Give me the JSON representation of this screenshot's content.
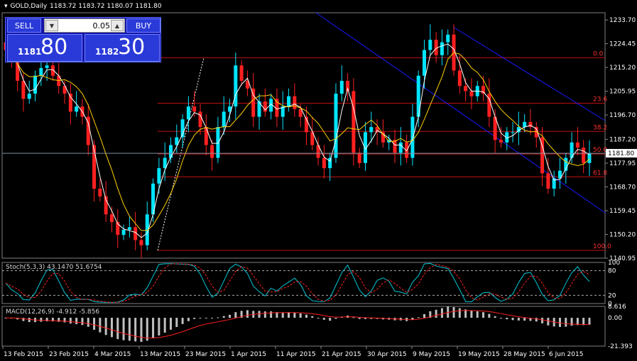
{
  "header": {
    "symbol": "GOLD,Daily",
    "ohlc": "1183.72 1183.72 1180.07 1181.80"
  },
  "trade_panel": {
    "sell_label": "SELL",
    "buy_label": "BUY",
    "lot_value": "0.05",
    "sell_price_small": "1181",
    "sell_price_big": "80",
    "buy_price_small": "1182",
    "buy_price_big": "30"
  },
  "price_axis": {
    "labels": [
      "1233.70",
      "1224.45",
      "1215.20",
      "1205.95",
      "1196.70",
      "1187.20",
      "1177.95",
      "1168.70",
      "1159.45",
      "1150.20",
      "1140.95"
    ],
    "current_price": "1181.80"
  },
  "fib_levels": [
    {
      "label": "0.0",
      "price": 1219.0
    },
    {
      "label": "23.6",
      "price": 1201.3
    },
    {
      "label": "38.2",
      "price": 1190.3
    },
    {
      "label": "50.0",
      "price": 1181.5
    },
    {
      "label": "61.8",
      "price": 1172.6
    },
    {
      "label": "100.0",
      "price": 1144.0
    }
  ],
  "stoch": {
    "label": "Stoch(5,3,3) 43.1470 51.6754",
    "levels": [
      "100",
      "80",
      "20",
      "0"
    ]
  },
  "macd": {
    "label": "MACD(12,26,9) -4.912 -5.856",
    "levels": [
      "8.616",
      "0.00",
      "-21.393"
    ]
  },
  "time_axis": [
    "13 Feb 2015",
    "23 Feb 2015",
    "4 Mar 2015",
    "13 Mar 2015",
    "23 Mar 2015",
    "1 Apr 2015",
    "11 Apr 2015",
    "21 Apr 2015",
    "30 Apr 2015",
    "9 May 2015",
    "19 May 2015",
    "28 May 2015",
    "6 Jun 2015"
  ],
  "colors": {
    "bull": "#00e5ff",
    "bear": "#ff2020",
    "fib": "#c01010",
    "channel": "#1a1aff",
    "ma_fast": "#ffffff",
    "ma_slow": "#ffd000",
    "stoch_main": "#00c8d8",
    "stoch_signal": "#ff2020",
    "macd_hist": "#c0c0c0",
    "macd_signal": "#ff2020"
  },
  "chart_data": {
    "type": "candlestick",
    "symbol": "GOLD",
    "timeframe": "Daily",
    "ylim": [
      1140.95,
      1236.5
    ],
    "x": [
      "13 Feb 2015",
      "23 Feb 2015",
      "4 Mar 2015",
      "13 Mar 2015",
      "23 Mar 2015",
      "1 Apr 2015",
      "11 Apr 2015",
      "21 Apr 2015",
      "30 Apr 2015",
      "9 May 2015",
      "19 May 2015",
      "28 May 2015",
      "6 Jun 2015"
    ],
    "closes": [
      1222,
      1218,
      1210,
      1203,
      1205,
      1212,
      1215,
      1216,
      1212,
      1208,
      1205,
      1198,
      1200,
      1196,
      1185,
      1168,
      1165,
      1158,
      1155,
      1150,
      1152,
      1153,
      1148,
      1146,
      1158,
      1170,
      1176,
      1180,
      1185,
      1188,
      1195,
      1200,
      1198,
      1192,
      1185,
      1180,
      1192,
      1198,
      1200,
      1216,
      1210,
      1207,
      1196,
      1202,
      1198,
      1203,
      1196,
      1200,
      1204,
      1199,
      1196,
      1190,
      1185,
      1180,
      1176,
      1180,
      1205,
      1210,
      1206,
      1182,
      1178,
      1190,
      1192,
      1190,
      1186,
      1187,
      1182,
      1186,
      1180,
      1196,
      1212,
      1222,
      1226,
      1220,
      1225,
      1228,
      1214,
      1208,
      1206,
      1204,
      1208,
      1205,
      1196,
      1187,
      1186,
      1190,
      1190,
      1192,
      1194,
      1192,
      1188,
      1174,
      1168,
      1172,
      1175,
      1180,
      1186,
      1184,
      1178,
      1181.8
    ]
  }
}
